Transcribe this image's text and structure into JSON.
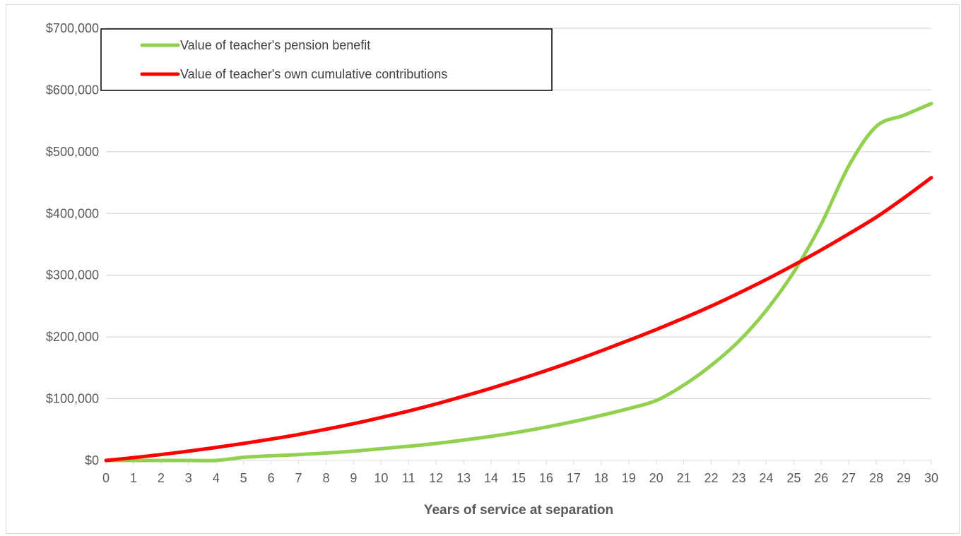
{
  "chart_data": {
    "type": "line",
    "title": "",
    "xlabel": "Years of service at separation",
    "ylabel": "",
    "x": [
      0,
      1,
      2,
      3,
      4,
      5,
      6,
      7,
      8,
      9,
      10,
      11,
      12,
      13,
      14,
      15,
      16,
      17,
      18,
      19,
      20,
      21,
      22,
      23,
      24,
      25,
      26,
      27,
      28,
      29,
      30
    ],
    "x_tick_labels": [
      "0",
      "1",
      "2",
      "3",
      "4",
      "5",
      "6",
      "7",
      "8",
      "9",
      "10",
      "11",
      "12",
      "13",
      "14",
      "15",
      "16",
      "17",
      "18",
      "19",
      "20",
      "21",
      "22",
      "23",
      "24",
      "25",
      "26",
      "27",
      "28",
      "29",
      "30"
    ],
    "ylim": [
      0,
      700000
    ],
    "y_ticks": [
      0,
      100000,
      200000,
      300000,
      400000,
      500000,
      600000,
      700000
    ],
    "y_tick_labels": [
      "$0",
      "$100,000",
      "$200,000",
      "$300,000",
      "$400,000",
      "$500,000",
      "$600,000",
      "$700,000"
    ],
    "grid": "horizontal",
    "legend_position": "top-left",
    "series": [
      {
        "name": "Value of teacher's pension benefit",
        "color": "#92d050",
        "values": [
          0,
          0,
          0,
          0,
          0,
          5000,
          7500,
          9500,
          12000,
          15000,
          19000,
          23000,
          27500,
          33000,
          39000,
          46000,
          54000,
          63000,
          73000,
          84000,
          97000,
          122000,
          154000,
          193000,
          243000,
          305000,
          383000,
          477000,
          541000,
          559000,
          578000
        ]
      },
      {
        "name": "Value of teacher's own cumulative contributions",
        "color": "#ff0000",
        "values": [
          0,
          4500,
          9500,
          15000,
          21000,
          27500,
          34500,
          42000,
          50500,
          59500,
          69500,
          80000,
          91500,
          104000,
          117000,
          131000,
          145500,
          161000,
          177500,
          194500,
          212000,
          230500,
          250000,
          271000,
          293000,
          316500,
          341000,
          367000,
          394000,
          425000,
          458000
        ]
      }
    ]
  }
}
